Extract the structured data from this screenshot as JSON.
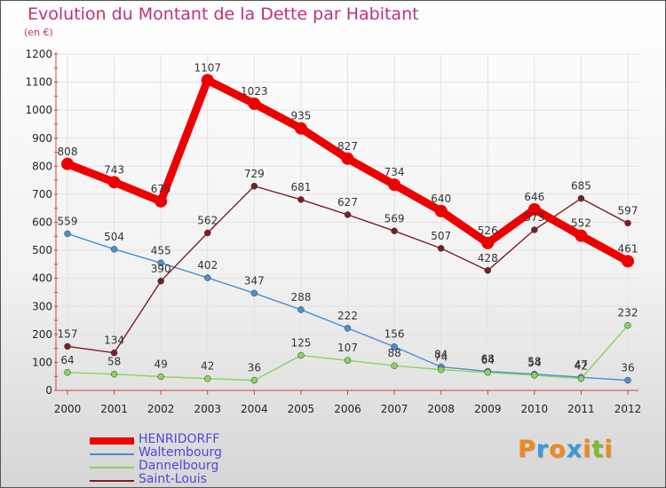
{
  "title": "Evolution du Montant de la Dette par Habitant",
  "subtitle": "(en €)",
  "logo": {
    "text": "Proxiti",
    "letter_colors": [
      "#f08a1c",
      "#3a9ad9",
      "#f08a1c",
      "#3a9ad9",
      "#f08a1c",
      "#7bbf2a",
      "#f08a1c"
    ]
  },
  "chart_data": {
    "type": "line",
    "title": "Evolution du Montant de la Dette par Habitant",
    "ylabel": "(en €)",
    "xlabel": "",
    "x": [
      "2000",
      "2001",
      "2002",
      "2003",
      "2004",
      "2005",
      "2006",
      "2007",
      "2008",
      "2009",
      "2010",
      "2011",
      "2012"
    ],
    "ylim": [
      0,
      1200
    ],
    "yticks": [
      0,
      100,
      200,
      300,
      400,
      500,
      600,
      700,
      800,
      900,
      1000,
      1100,
      1200
    ],
    "grid": true,
    "legend_position": "bottom-left",
    "series": [
      {
        "name": "HENRIDORFF",
        "color": "#ee0000",
        "emphasis": true,
        "values": [
          808,
          743,
          675,
          1107,
          1023,
          935,
          827,
          734,
          640,
          526,
          646,
          552,
          461
        ],
        "labels": [
          "808",
          "743",
          "675",
          "1107",
          "1023",
          "935",
          "827",
          "734",
          "640",
          "526",
          "646",
          "552",
          "461"
        ]
      },
      {
        "name": "Waltembourg",
        "color": "#4a8fd0",
        "emphasis": false,
        "values": [
          559,
          504,
          455,
          402,
          347,
          288,
          222,
          156,
          84,
          68,
          58,
          47,
          36
        ],
        "labels": [
          "559",
          "504",
          "455",
          "402",
          "347",
          "288",
          "222",
          "156",
          "84",
          "68",
          "58",
          "47",
          "36"
        ]
      },
      {
        "name": "Dannelbourg",
        "color": "#8ad35a",
        "emphasis": false,
        "values": [
          64,
          58,
          49,
          42,
          36,
          125,
          107,
          88,
          74,
          64,
          54,
          42,
          232
        ],
        "labels": [
          "64",
          "58",
          "49",
          "42",
          "36",
          "125",
          "107",
          "88",
          "74",
          "64",
          "54",
          "42",
          "232"
        ]
      },
      {
        "name": "Saint-Louis",
        "color": "#7a1e24",
        "emphasis": false,
        "values": [
          157,
          134,
          390,
          562,
          729,
          681,
          627,
          569,
          507,
          428,
          573,
          685,
          597
        ],
        "labels": [
          "157",
          "134",
          "390",
          "562",
          "729",
          "681",
          "627",
          "569",
          "507",
          "428",
          "573",
          "685",
          "597"
        ]
      }
    ]
  }
}
